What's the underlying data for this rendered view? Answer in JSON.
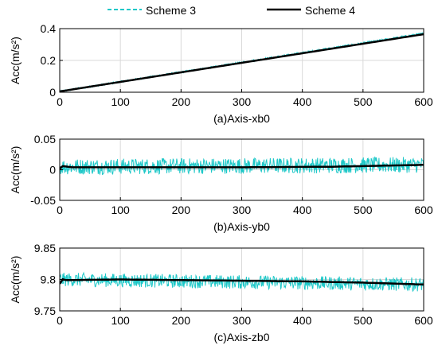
{
  "legend": {
    "items": [
      {
        "label": "Scheme 3",
        "color": "#1ec8c8",
        "style": "dashed"
      },
      {
        "label": "Scheme 4",
        "color": "#000000",
        "style": "solid"
      }
    ]
  },
  "chart_data": [
    {
      "type": "line",
      "xlabel": "(a)Axis-xb0",
      "ylabel": "Acc(m/s²)",
      "xlim": [
        0,
        600
      ],
      "ylim": [
        0,
        0.4
      ],
      "xticks": [
        "0",
        "100",
        "200",
        "300",
        "400",
        "500",
        "600"
      ],
      "yticks": [
        "0",
        "0.2",
        "0.4"
      ],
      "grid": true,
      "series": [
        {
          "name": "Scheme 3",
          "color": "#1ec8c8",
          "x": [
            0,
            600
          ],
          "values": [
            0.005,
            0.37
          ],
          "noise": 0.006
        },
        {
          "name": "Scheme 4",
          "color": "#000000",
          "x": [
            0,
            600
          ],
          "values": [
            0.005,
            0.365
          ],
          "noise": 0
        }
      ]
    },
    {
      "type": "line",
      "xlabel": "(b)Axis-yb0",
      "ylabel": "Acc(m/s²)",
      "xlim": [
        0,
        600
      ],
      "ylim": [
        -0.05,
        0.05
      ],
      "xticks": [
        "0",
        "100",
        "200",
        "300",
        "400",
        "500",
        "600"
      ],
      "yticks": [
        "-0.05",
        "0",
        "0.05"
      ],
      "grid": true,
      "series": [
        {
          "name": "Scheme 3",
          "color": "#1ec8c8",
          "x": [
            0,
            600
          ],
          "values": [
            0.005,
            0.008
          ],
          "noise": 0.013
        },
        {
          "name": "Scheme 4",
          "color": "#000000",
          "x": [
            0,
            5,
            20,
            100,
            300,
            450,
            600
          ],
          "values": [
            0.002,
            0.006,
            0.004,
            0.004,
            0.004,
            0.005,
            0.008
          ],
          "noise": 0
        }
      ]
    },
    {
      "type": "line",
      "xlabel": "(c)Axis-zb0",
      "ylabel": "Acc(m/s²)",
      "xlim": [
        0,
        600
      ],
      "ylim": [
        9.75,
        9.85
      ],
      "xticks": [
        "0",
        "100",
        "200",
        "300",
        "400",
        "500",
        "600"
      ],
      "yticks": [
        "9.75",
        "9.8",
        "9.85"
      ],
      "grid": true,
      "series": [
        {
          "name": "Scheme 3",
          "color": "#1ec8c8",
          "x": [
            0,
            600
          ],
          "values": [
            9.8,
            9.792
          ],
          "noise": 0.011
        },
        {
          "name": "Scheme 4",
          "color": "#000000",
          "x": [
            0,
            3,
            10,
            100,
            200,
            300,
            400,
            500,
            600
          ],
          "values": [
            9.793,
            9.801,
            9.799,
            9.8,
            9.799,
            9.798,
            9.797,
            9.795,
            9.792
          ],
          "noise": 0
        }
      ]
    }
  ]
}
